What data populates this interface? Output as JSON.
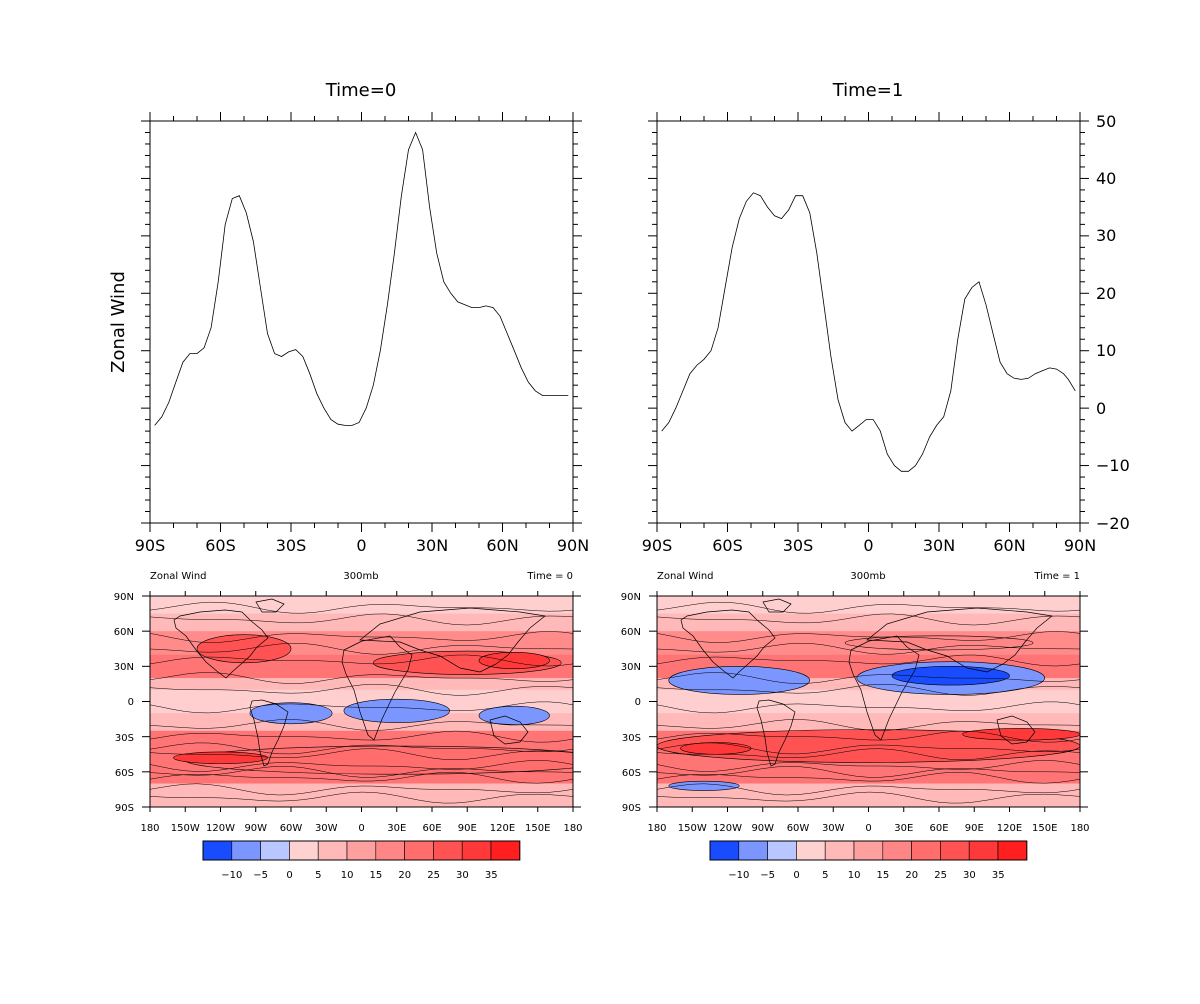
{
  "figure": {
    "ylabel": "Zonal Wind",
    "line_xticks": [
      "90S",
      "60S",
      "30S",
      "0",
      "30N",
      "60N",
      "90N"
    ],
    "line_yticks": [
      "50",
      "40",
      "30",
      "20",
      "10",
      "0",
      "−10",
      "−20"
    ],
    "map_xticks": [
      "180",
      "150W",
      "120W",
      "90W",
      "60W",
      "30W",
      "0",
      "30E",
      "60E",
      "90E",
      "120E",
      "150E",
      "180"
    ],
    "map_yticks": [
      "90N",
      "60N",
      "30N",
      "0",
      "30S",
      "60S",
      "90S"
    ]
  },
  "chart_data": [
    {
      "type": "line",
      "title": "Time=0",
      "ylabel": "Zonal Wind",
      "xlim": [
        -90,
        90
      ],
      "ylim": [
        -20,
        50
      ],
      "x": [
        -88,
        -85,
        -82,
        -79,
        -76,
        -73,
        -70,
        -67,
        -64,
        -61,
        -58,
        -55,
        -52,
        -49,
        -46,
        -43,
        -40,
        -37,
        -34,
        -31,
        -28,
        -25,
        -22,
        -19,
        -16,
        -13,
        -10,
        -7,
        -4,
        -1,
        2,
        5,
        8,
        11,
        14,
        17,
        20,
        23,
        26,
        29,
        32,
        35,
        38,
        41,
        44,
        47,
        50,
        53,
        56,
        59,
        62,
        65,
        68,
        71,
        74,
        77,
        80,
        83,
        85,
        88
      ],
      "values": [
        -3,
        -1.5,
        1,
        4.5,
        8,
        9.5,
        9.5,
        10.5,
        14,
        22,
        32,
        36.5,
        37,
        34,
        29,
        21,
        13,
        9.5,
        9,
        9.8,
        10.2,
        9,
        6,
        2.5,
        0,
        -2,
        -2.8,
        -3,
        -3,
        -2.5,
        0,
        4,
        10,
        18,
        27,
        37,
        45,
        48,
        45,
        35,
        27,
        22,
        20,
        18.5,
        18,
        17.5,
        17.5,
        17.8,
        17.5,
        16,
        13,
        10,
        7,
        4.5,
        3,
        2.2,
        2.2,
        2.2,
        2.2,
        2.2
      ]
    },
    {
      "type": "line",
      "title": "Time=1",
      "ylabel": "",
      "xlim": [
        -90,
        90
      ],
      "ylim": [
        -20,
        50
      ],
      "x": [
        -88,
        -85,
        -82,
        -79,
        -76,
        -73,
        -70,
        -67,
        -64,
        -61,
        -58,
        -55,
        -52,
        -49,
        -46,
        -43,
        -40,
        -37,
        -34,
        -31,
        -28,
        -25,
        -22,
        -19,
        -16,
        -13,
        -10,
        -7,
        -4,
        -1,
        2,
        5,
        8,
        11,
        14,
        17,
        20,
        23,
        26,
        29,
        32,
        35,
        38,
        41,
        44,
        47,
        50,
        53,
        56,
        59,
        62,
        65,
        68,
        71,
        74,
        77,
        80,
        83,
        85,
        88
      ],
      "values": [
        -4,
        -2.5,
        0,
        3,
        6,
        7.5,
        8.5,
        10,
        14,
        21,
        28,
        33,
        36,
        37.5,
        37,
        35,
        33.5,
        33,
        34.5,
        37,
        37,
        34,
        27,
        18,
        9,
        1.5,
        -2.5,
        -4,
        -3,
        -2,
        -2,
        -4,
        -8,
        -10,
        -11,
        -11,
        -10,
        -8,
        -5,
        -3,
        -1.5,
        3,
        12,
        19,
        21,
        22,
        18,
        13,
        8,
        6,
        5.2,
        5,
        5.2,
        6,
        6.5,
        7,
        6.8,
        6,
        5,
        3
      ]
    },
    {
      "type": "heatmap",
      "title": "Zonal Wind",
      "subtitle": "300mb",
      "time_label": "Time = 0",
      "xlim": [
        -180,
        180
      ],
      "ylim": [
        -90,
        90
      ],
      "colorbar_levels": [
        -15,
        -10,
        -5,
        0,
        5,
        10,
        15,
        20,
        25,
        30,
        35,
        40
      ],
      "colorbar_labels": [
        "−10",
        "−5",
        "0",
        "5",
        "10",
        "15",
        "20",
        "25",
        "30",
        "35"
      ],
      "colors": [
        "#1a4cff",
        "#7b96ff",
        "#b9c6ff",
        "#ffd2d2",
        "#ffb9b9",
        "#ffa0a0",
        "#ff8686",
        "#ff6d6d",
        "#ff5353",
        "#ff3939",
        "#ff1f1f"
      ],
      "blobs": [
        {
          "lon": -100,
          "lat": 45,
          "rx": 40,
          "ry": 12,
          "level": 8
        },
        {
          "lon": 90,
          "lat": 33,
          "rx": 80,
          "ry": 10,
          "level": 8
        },
        {
          "lon": 130,
          "lat": 35,
          "rx": 30,
          "ry": 7,
          "level": 9
        },
        {
          "lon": 30,
          "lat": -50,
          "rx": 180,
          "ry": 12,
          "level": 7
        },
        {
          "lon": -120,
          "lat": -48,
          "rx": 40,
          "ry": 5,
          "level": 9
        },
        {
          "lon": -60,
          "lat": -10,
          "rx": 35,
          "ry": 9,
          "level": 1
        },
        {
          "lon": 30,
          "lat": -8,
          "rx": 45,
          "ry": 10,
          "level": 1
        },
        {
          "lon": 130,
          "lat": -12,
          "rx": 30,
          "ry": 8,
          "level": 1
        }
      ]
    },
    {
      "type": "heatmap",
      "title": "Zonal Wind",
      "subtitle": "300mb",
      "time_label": "Time = 1",
      "xlim": [
        -180,
        180
      ],
      "ylim": [
        -90,
        90
      ],
      "colorbar_levels": [
        -15,
        -10,
        -5,
        0,
        5,
        10,
        15,
        20,
        25,
        30,
        35,
        40
      ],
      "colorbar_labels": [
        "−10",
        "−5",
        "0",
        "5",
        "10",
        "15",
        "20",
        "25",
        "30",
        "35"
      ],
      "colors": [
        "#1a4cff",
        "#7b96ff",
        "#b9c6ff",
        "#ffd2d2",
        "#ffb9b9",
        "#ffa0a0",
        "#ff8686",
        "#ff6d6d",
        "#ff5353",
        "#ff3939",
        "#ff1f1f"
      ],
      "blobs": [
        {
          "lon": -110,
          "lat": 18,
          "rx": 60,
          "ry": 12,
          "level": 1
        },
        {
          "lon": 70,
          "lat": 20,
          "rx": 80,
          "ry": 14,
          "level": 1
        },
        {
          "lon": 70,
          "lat": 22,
          "rx": 50,
          "ry": 8,
          "level": 0
        },
        {
          "lon": 0,
          "lat": -38,
          "rx": 180,
          "ry": 14,
          "level": 8
        },
        {
          "lon": 130,
          "lat": -28,
          "rx": 50,
          "ry": 5,
          "level": 9
        },
        {
          "lon": -130,
          "lat": -40,
          "rx": 30,
          "ry": 5,
          "level": 9
        },
        {
          "lon": 60,
          "lat": 50,
          "rx": 80,
          "ry": 6,
          "level": 6
        },
        {
          "lon": -140,
          "lat": -72,
          "rx": 30,
          "ry": 4,
          "level": 1
        }
      ]
    }
  ]
}
